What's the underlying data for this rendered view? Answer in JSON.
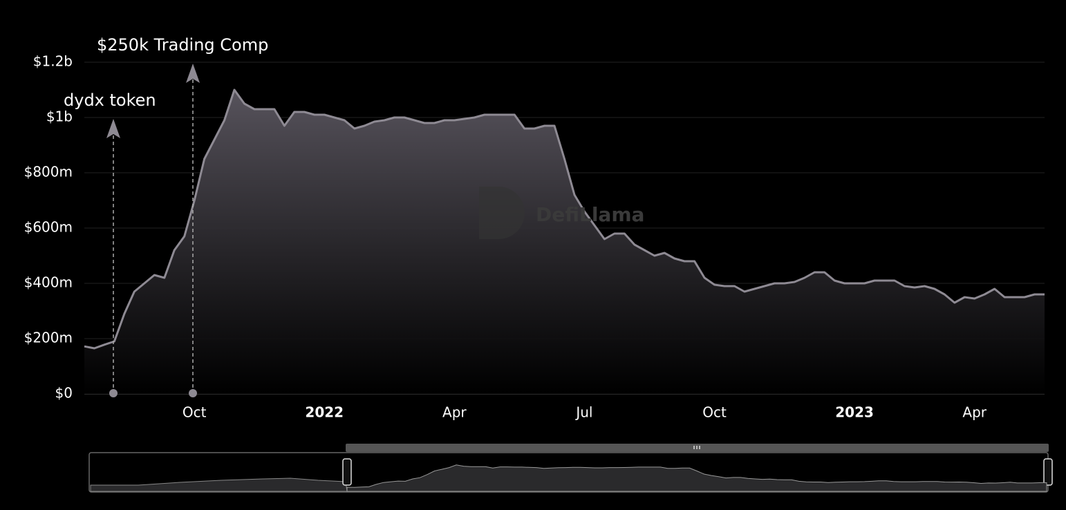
{
  "chart_data": {
    "type": "area",
    "color": "#8e8a93",
    "grid": true,
    "watermark": "DefiLlama",
    "annotations": [
      "dydx token",
      "$250k Trading Comp"
    ],
    "categories": [
      null,
      null,
      null,
      null,
      null,
      null,
      null,
      null,
      null,
      null,
      null,
      "Oct",
      null,
      null,
      null,
      null,
      null,
      null,
      null,
      null,
      null,
      null,
      null,
      null,
      "2022",
      null,
      null,
      null,
      null,
      null,
      null,
      null,
      null,
      null,
      null,
      null,
      null,
      "Apr",
      null,
      null,
      null,
      null,
      null,
      null,
      null,
      null,
      null,
      null,
      null,
      null,
      "Jul",
      null,
      null,
      null,
      null,
      null,
      null,
      null,
      null,
      null,
      null,
      null,
      null,
      "Oct",
      null,
      null,
      null,
      null,
      null,
      null,
      null,
      null,
      null,
      null,
      null,
      null,
      null,
      "2023",
      null,
      null,
      null,
      null,
      null,
      null,
      null,
      null,
      null,
      null,
      null,
      "Apr",
      null,
      null,
      null,
      null,
      null,
      null,
      null
    ],
    "values": [
      172000000,
      165000000,
      178000000,
      190000000,
      290000000,
      370000000,
      400000000,
      430000000,
      420000000,
      520000000,
      570000000,
      700000000,
      850000000,
      920000000,
      990000000,
      1100000000,
      1050000000,
      1030000000,
      1030000000,
      1030000000,
      970000000,
      1020000000,
      1020000000,
      1010000000,
      1010000000,
      1000000000,
      990000000,
      960000000,
      970000000,
      985000000,
      990000000,
      1000000000,
      1000000000,
      990000000,
      980000000,
      980000000,
      990000000,
      990000000,
      995000000,
      1000000000,
      1010000000,
      1010000000,
      1010000000,
      1010000000,
      960000000,
      960000000,
      970000000,
      970000000,
      850000000,
      720000000,
      660000000,
      610000000,
      560000000,
      580000000,
      580000000,
      540000000,
      520000000,
      500000000,
      510000000,
      490000000,
      480000000,
      480000000,
      420000000,
      395000000,
      390000000,
      390000000,
      370000000,
      380000000,
      390000000,
      400000000,
      400000000,
      405000000,
      420000000,
      440000000,
      440000000,
      410000000,
      400000000,
      400000000,
      400000000,
      410000000,
      410000000,
      410000000,
      390000000,
      385000000,
      390000000,
      380000000,
      360000000,
      330000000,
      350000000,
      345000000,
      360000000,
      380000000,
      350000000,
      350000000,
      350000000,
      360000000,
      360000000
    ],
    "ylim": [
      0,
      1200000000
    ],
    "yticks": [
      {
        "value": 0,
        "label": "$0"
      },
      {
        "value": 200000000,
        "label": "$200m"
      },
      {
        "value": 400000000,
        "label": "$400m"
      },
      {
        "value": 600000000,
        "label": "$600m"
      },
      {
        "value": 800000000,
        "label": "$800m"
      },
      {
        "value": 1000000000,
        "label": "$1b"
      },
      {
        "value": 1200000000,
        "label": "$1.2b"
      }
    ]
  }
}
